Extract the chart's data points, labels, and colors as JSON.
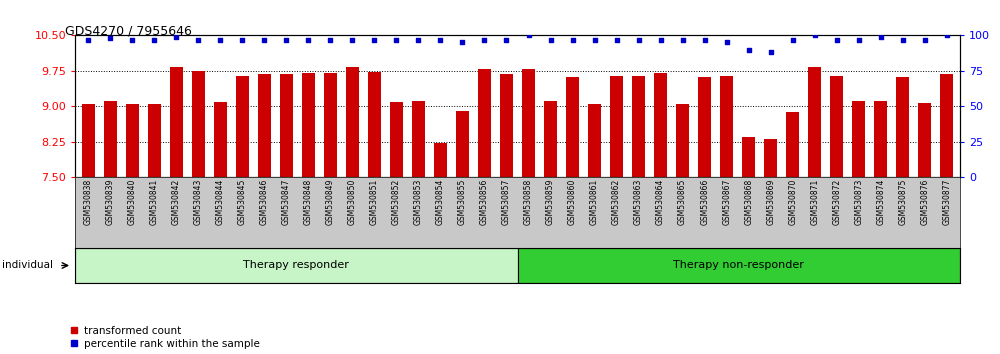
{
  "title": "GDS4270 / 7955646",
  "categories": [
    "GSM530838",
    "GSM530839",
    "GSM530840",
    "GSM530841",
    "GSM530842",
    "GSM530843",
    "GSM530844",
    "GSM530845",
    "GSM530846",
    "GSM530847",
    "GSM530848",
    "GSM530849",
    "GSM530850",
    "GSM530851",
    "GSM530852",
    "GSM530853",
    "GSM530854",
    "GSM530855",
    "GSM530856",
    "GSM530857",
    "GSM530858",
    "GSM530859",
    "GSM530860",
    "GSM530861",
    "GSM530862",
    "GSM530863",
    "GSM530864",
    "GSM530865",
    "GSM530866",
    "GSM530867",
    "GSM530868",
    "GSM530869",
    "GSM530870",
    "GSM530871",
    "GSM530872",
    "GSM530873",
    "GSM530874",
    "GSM530875",
    "GSM530876",
    "GSM530877"
  ],
  "bar_values": [
    9.04,
    9.12,
    9.05,
    9.05,
    9.84,
    9.75,
    9.08,
    9.65,
    9.68,
    9.68,
    9.7,
    9.7,
    9.84,
    9.73,
    9.08,
    9.1,
    8.22,
    8.9,
    9.78,
    9.68,
    9.78,
    9.12,
    9.62,
    9.05,
    9.65,
    9.65,
    9.7,
    9.05,
    9.62,
    9.65,
    8.35,
    8.3,
    8.88,
    9.84,
    9.65,
    9.12,
    9.12,
    9.62,
    9.07,
    9.68
  ],
  "percentile_values": [
    97,
    98,
    97,
    97,
    99,
    97,
    97,
    97,
    97,
    97,
    97,
    97,
    97,
    97,
    97,
    97,
    97,
    95,
    97,
    97,
    100,
    97,
    97,
    97,
    97,
    97,
    97,
    97,
    97,
    95,
    90,
    88,
    97,
    100,
    97,
    97,
    99,
    97,
    97,
    100
  ],
  "ylim_left": [
    7.5,
    10.5
  ],
  "ylim_right": [
    0,
    100
  ],
  "yticks_left": [
    7.5,
    8.25,
    9.0,
    9.75,
    10.5
  ],
  "yticks_right": [
    0,
    25,
    50,
    75,
    100
  ],
  "bar_color": "#cc0000",
  "dot_color": "#0000cc",
  "group1_label": "Therapy responder",
  "group2_label": "Therapy non-responder",
  "group1_count": 20,
  "group2_count": 20,
  "group1_color": "#90ee90",
  "group2_color": "#32cd32",
  "individual_label": "individual",
  "legend_bar_label": "transformed count",
  "legend_dot_label": "percentile rank within the sample",
  "background_color": "#ffffff",
  "tick_area_color": "#c8c8c8",
  "gridline_values": [
    8.25,
    9.0,
    9.75
  ]
}
